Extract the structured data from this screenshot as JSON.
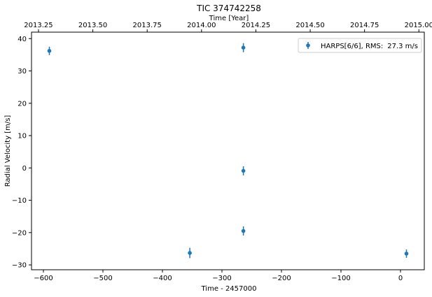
{
  "chart_data": {
    "type": "scatter",
    "title": "TIC 374742258",
    "xlabel": "Time - 2457000",
    "ylabel": "Radial Velocity [m/s]",
    "top_xlabel": "Time [Year]",
    "xlim": [
      -620,
      40
    ],
    "ylim": [
      -31.5,
      42
    ],
    "xticks": [
      -600,
      -500,
      -400,
      -300,
      -200,
      -100,
      0
    ],
    "xtick_labels": [
      "−600",
      "−500",
      "−400",
      "−300",
      "−200",
      "−100",
      "0"
    ],
    "yticks": [
      -30,
      -20,
      -10,
      0,
      10,
      20,
      30,
      40
    ],
    "ytick_labels": [
      "−30",
      "−20",
      "−10",
      "0",
      "10",
      "20",
      "30",
      "40"
    ],
    "top_xticks": [
      2013.25,
      2013.5,
      2013.75,
      2014.0,
      2014.25,
      2014.5,
      2014.75,
      2015.0
    ],
    "top_xtick_labels": [
      "2013.25",
      "2013.50",
      "2013.75",
      "2014.00",
      "2014.25",
      "2014.50",
      "2014.75",
      "2015.00"
    ],
    "top_axis_reference": {
      "x": -590,
      "year": 2013.3
    },
    "top_axis_days_per_year": 365.25,
    "legend_position": "top-right",
    "series": [
      {
        "name": "HARPS[6/6], RMS:",
        "rms_label": "27.3 m/s",
        "color": "#1f77b4",
        "points": [
          {
            "x": -590,
            "y": 36.2,
            "err": 1.3
          },
          {
            "x": -354,
            "y": -26.3,
            "err": 1.6
          },
          {
            "x": -264,
            "y": 37.2,
            "err": 1.4
          },
          {
            "x": -264,
            "y": -0.9,
            "err": 1.4
          },
          {
            "x": -264,
            "y": -19.5,
            "err": 1.4
          },
          {
            "x": 10,
            "y": -26.5,
            "err": 1.3
          }
        ]
      }
    ]
  }
}
